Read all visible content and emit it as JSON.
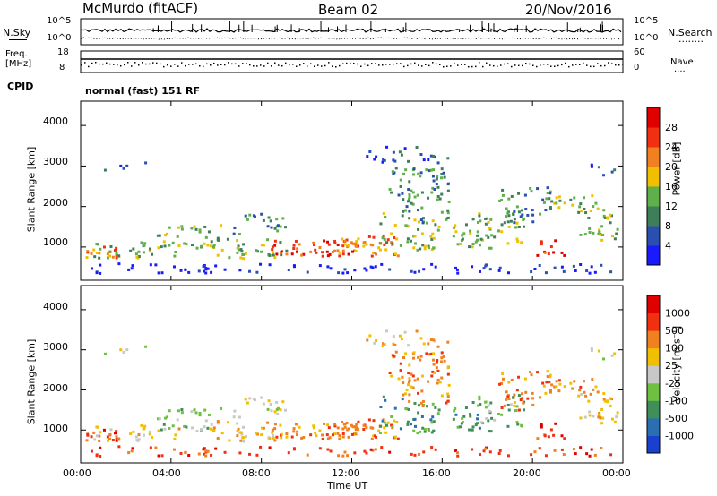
{
  "header": {
    "station": "McMurdo (fitACF)",
    "beam": "Beam 02",
    "date": "20/Nov/2016"
  },
  "noise_panel": {
    "left_label": "N.Sky",
    "right_label": "N.Search",
    "right_dots": "........",
    "left_ticks": [
      "10^5",
      "10^0"
    ],
    "right_ticks": [
      "10^5",
      "10^0"
    ]
  },
  "freq_panel": {
    "left_label_1": "Freq.",
    "left_label_2": "[MHz]",
    "left_ticks": [
      "18",
      "8"
    ],
    "right_label": "Nave",
    "right_dots": "....",
    "right_ticks": [
      "60",
      "0"
    ]
  },
  "cpid_panel": {
    "label": "CPID",
    "value": "normal (fast) 151 RF"
  },
  "chart_data": [
    {
      "type": "heatmap",
      "name": "power",
      "ylabel": "Slant Range [km]",
      "yticks": [
        "1000",
        "2000",
        "3000",
        "4000"
      ],
      "ylim": [
        180,
        4600
      ],
      "colorbar": {
        "label": "Power [dB]",
        "ticks": [
          "4",
          "8",
          "12",
          "16",
          "20",
          "24",
          "28"
        ],
        "range": [
          0,
          30
        ],
        "colors": [
          "#1a1aff",
          "#2a4fb0",
          "#3e7f5a",
          "#5fb04a",
          "#f0c000",
          "#f08020",
          "#f03010",
          "#e00000"
        ]
      }
    },
    {
      "type": "heatmap",
      "name": "velocity",
      "ylabel": "Slant Range [km]",
      "yticks": [
        "1000",
        "2000",
        "3000",
        "4000"
      ],
      "ylim": [
        180,
        4600
      ],
      "colorbar": {
        "label": "Velocity [m s⁻¹]",
        "ticks": [
          "1000",
          "500",
          "100",
          "25",
          "-25",
          "-100",
          "-500",
          "-1000"
        ],
        "colors": [
          "#1a40d0",
          "#2a6fb0",
          "#3e8f5a",
          "#6fc040",
          "#c8c8c8",
          "#f0c000",
          "#f08020",
          "#f03010",
          "#e00000"
        ]
      }
    }
  ],
  "xaxis": {
    "label": "Time UT",
    "ticks": [
      "00:00",
      "04:00",
      "08:00",
      "12:00",
      "16:00",
      "20:00",
      "00:00"
    ]
  }
}
